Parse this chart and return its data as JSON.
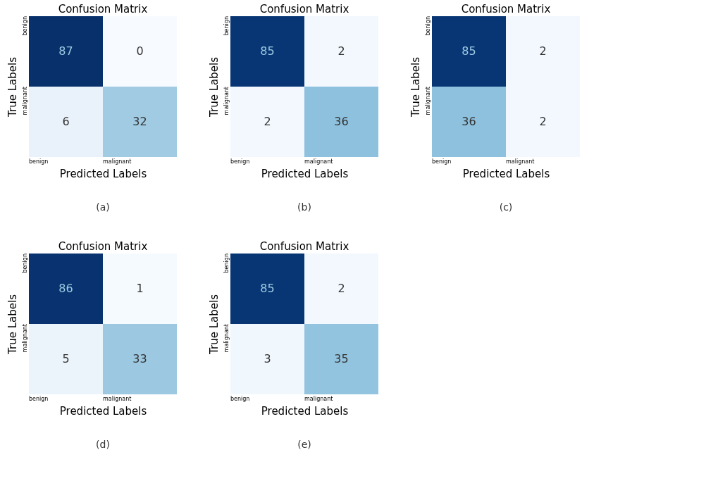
{
  "chart_data": [
    {
      "type": "heatmap",
      "title": "Confusion Matrix",
      "xlabel": "Predicted Labels",
      "ylabel": "True Labels",
      "categories": [
        "benign",
        "malignant"
      ],
      "y_categories": [
        "benign",
        "malignant"
      ],
      "cells": [
        [
          87,
          0
        ],
        [
          6,
          32
        ]
      ],
      "data_labels": true,
      "annotations": [
        "(a)"
      ]
    },
    {
      "type": "heatmap",
      "title": "Confusion Matrix",
      "xlabel": "Predicted Labels",
      "ylabel": "True Labels",
      "categories": [
        "benign",
        "malignant"
      ],
      "y_categories": [
        "benign",
        "malignant"
      ],
      "cells": [
        [
          85,
          2
        ],
        [
          2,
          36
        ]
      ],
      "data_labels": true,
      "annotations": [
        "(b)"
      ]
    },
    {
      "type": "heatmap",
      "title": "Confusion Matrix",
      "xlabel": "Predicted Labels",
      "ylabel": "True Labels",
      "categories": [
        "benign",
        "malignant"
      ],
      "y_categories": [
        "benign",
        "malignant"
      ],
      "cells": [
        [
          85,
          2
        ],
        [
          36,
          2
        ]
      ],
      "data_labels": true,
      "annotations": [
        "(c)"
      ]
    },
    {
      "type": "heatmap",
      "title": "Confusion Matrix",
      "xlabel": "Predicted Labels",
      "ylabel": "True Labels",
      "categories": [
        "benign",
        "malignant"
      ],
      "y_categories": [
        "benign",
        "malignant"
      ],
      "cells": [
        [
          86,
          1
        ],
        [
          5,
          33
        ]
      ],
      "data_labels": true,
      "annotations": [
        "(d)"
      ]
    },
    {
      "type": "heatmap",
      "title": "Confusion Matrix",
      "xlabel": "Predicted Labels",
      "ylabel": "True Labels",
      "categories": [
        "benign",
        "malignant"
      ],
      "y_categories": [
        "benign",
        "malignant"
      ],
      "cells": [
        [
          85,
          2
        ],
        [
          3,
          35
        ]
      ],
      "data_labels": true,
      "annotations": [
        "(e)"
      ]
    }
  ]
}
